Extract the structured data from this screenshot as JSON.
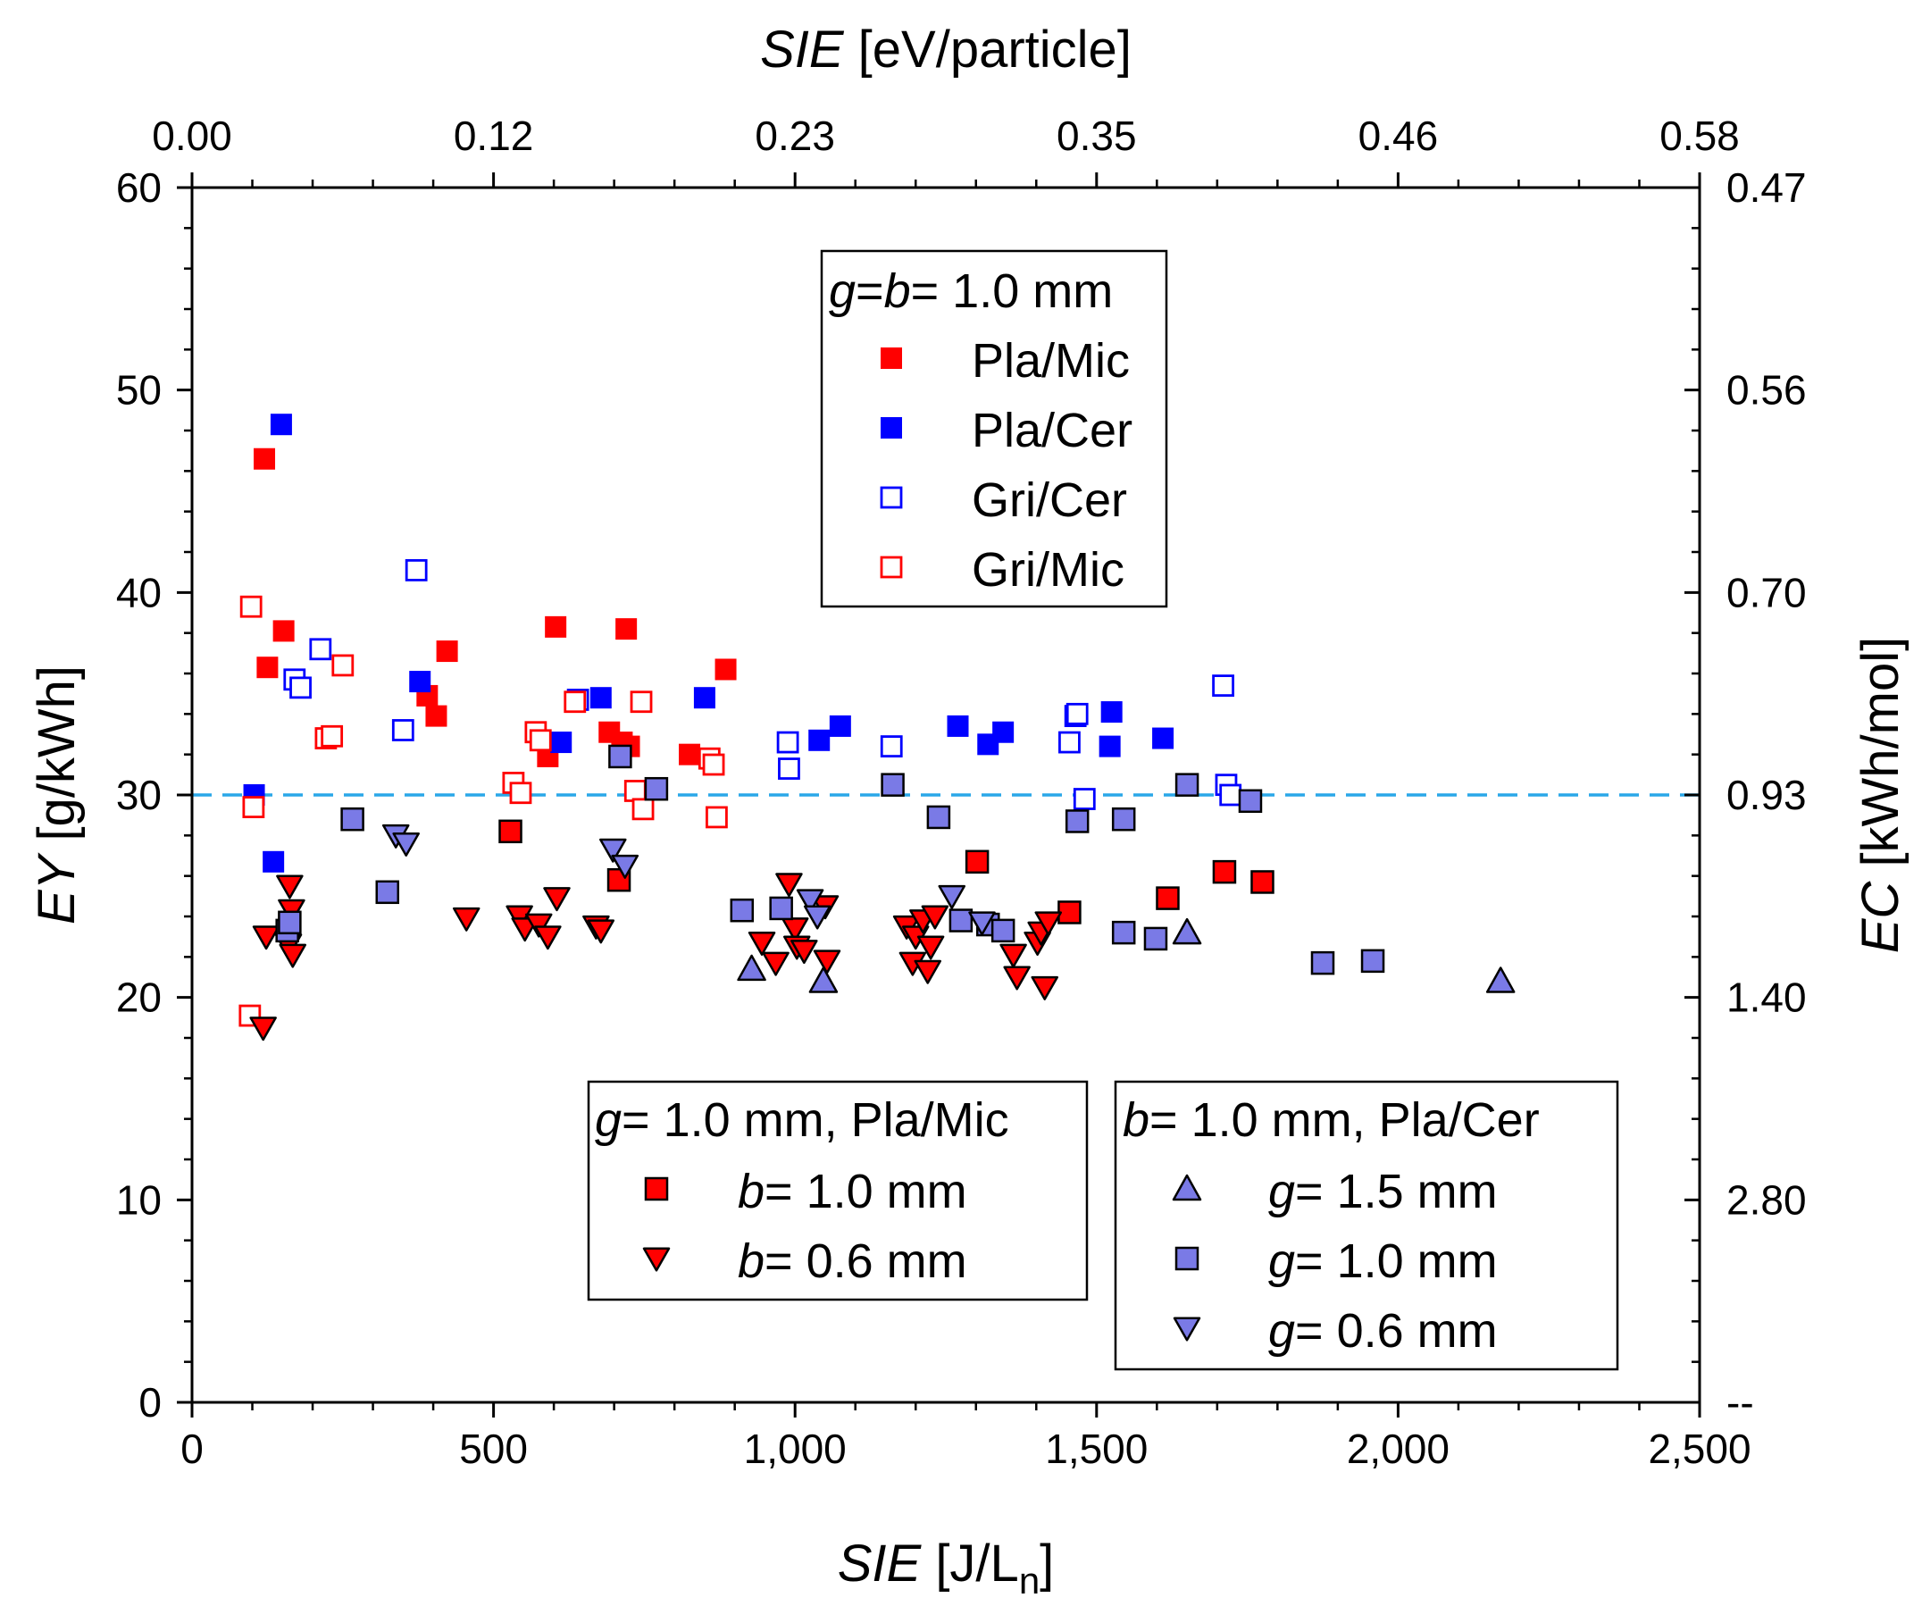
{
  "chart_data": {
    "type": "scatter",
    "title": "",
    "axes": {
      "x_bottom": {
        "label_italic": "SIE",
        "label_rest": " [J/L",
        "label_sub": "n",
        "label_close": "]",
        "range": [
          0,
          2500
        ],
        "ticks": [
          "0",
          "500",
          "1,000",
          "1,500",
          "2,000",
          "2,500"
        ],
        "tick_values": [
          0,
          500,
          1000,
          1500,
          2000,
          2500
        ]
      },
      "x_top": {
        "label_italic": "SIE",
        "label_rest": " [eV/particle]",
        "ticks": [
          "0.00",
          "0.12",
          "0.23",
          "0.35",
          "0.46",
          "0.58"
        ],
        "tick_values": [
          0,
          500,
          1000,
          1500,
          2000,
          2500
        ]
      },
      "y_left": {
        "label_italic": "EY",
        "label_rest": " [g/kWh]",
        "range": [
          0,
          60
        ],
        "ticks": [
          "0",
          "10",
          "20",
          "30",
          "40",
          "50",
          "60"
        ],
        "tick_values": [
          0,
          10,
          20,
          30,
          40,
          50,
          60
        ]
      },
      "y_right": {
        "label_italic": "EC",
        "label_rest": " [kWh/mol]",
        "ticks": [
          "--",
          "2.80",
          "1.40",
          "0.93",
          "0.70",
          "0.56",
          "0.47"
        ],
        "tick_values": [
          0,
          10,
          20,
          30,
          40,
          50,
          60
        ]
      }
    },
    "reference_line": {
      "y": 30,
      "style": "dashed",
      "color": "#2aa7e8"
    },
    "colors": {
      "red": "#ff0000",
      "blue": "#0000ff",
      "purple": "#7a7ae6"
    },
    "legends": [
      {
        "id": "legend-geometry",
        "title_parts": [
          [
            "g",
            true
          ],
          [
            "=",
            false
          ],
          [
            "b",
            true
          ],
          [
            "= 1.0 mm",
            false
          ]
        ],
        "entries": [
          {
            "label": "Pla/Mic",
            "series": "pla_mic"
          },
          {
            "label": "Pla/Cer",
            "series": "pla_cer"
          },
          {
            "label": "Gri/Cer",
            "series": "gri_cer"
          },
          {
            "label": "Gri/Mic",
            "series": "gri_mic"
          }
        ]
      },
      {
        "id": "legend-gap",
        "title_parts": [
          [
            "g",
            true
          ],
          [
            "= 1.0 mm, Pla/Mic",
            false
          ]
        ],
        "entries": [
          {
            "label_parts": [
              [
                "b",
                true
              ],
              [
                "= 1.0 mm",
                false
              ]
            ],
            "series": "b10_pla_mic"
          },
          {
            "label_parts": [
              [
                "b",
                true
              ],
              [
                "= 0.6 mm",
                false
              ]
            ],
            "series": "b06_pla_mic"
          }
        ]
      },
      {
        "id": "legend-barrier",
        "title_parts": [
          [
            "b",
            true
          ],
          [
            "= 1.0 mm, Pla/Cer",
            false
          ]
        ],
        "entries": [
          {
            "label_parts": [
              [
                "g",
                true
              ],
              [
                "= 1.5 mm",
                false
              ]
            ],
            "series": "g15_pla_cer"
          },
          {
            "label_parts": [
              [
                "g",
                true
              ],
              [
                "= 1.0 mm",
                false
              ]
            ],
            "series": "g10_pla_cer"
          },
          {
            "label_parts": [
              [
                "g",
                true
              ],
              [
                "= 0.6 mm",
                false
              ]
            ],
            "series": "g06_pla_cer"
          }
        ]
      }
    ],
    "series": [
      {
        "id": "pla_mic",
        "name": "Pla/Mic",
        "marker": "square",
        "fill": "#ff0000",
        "stroke": "none",
        "points": [
          [
            120,
            46.6
          ],
          [
            125,
            36.3
          ],
          [
            152,
            38.1
          ],
          [
            390,
            34.9
          ],
          [
            405,
            33.9
          ],
          [
            423,
            37.1
          ],
          [
            590,
            31.9
          ],
          [
            603,
            38.3
          ],
          [
            692,
            33.1
          ],
          [
            713,
            32.6
          ],
          [
            720,
            38.2
          ],
          [
            725,
            32.4
          ],
          [
            825,
            32.0
          ],
          [
            885,
            36.2
          ]
        ]
      },
      {
        "id": "pla_cer",
        "name": "Pla/Cer",
        "marker": "square",
        "fill": "#0000ff",
        "stroke": "none",
        "points": [
          [
            148,
            48.3
          ],
          [
            103,
            30.0
          ],
          [
            135,
            26.7
          ],
          [
            378,
            35.6
          ],
          [
            612,
            32.6
          ],
          [
            678,
            34.8
          ],
          [
            1040,
            32.7
          ],
          [
            1075,
            33.4
          ],
          [
            850,
            34.8
          ],
          [
            1270,
            33.4
          ],
          [
            1320,
            32.5
          ],
          [
            1345,
            33.1
          ],
          [
            1525,
            34.1
          ],
          [
            1522,
            32.4
          ],
          [
            1610,
            32.8
          ]
        ]
      },
      {
        "id": "gri_cer",
        "name": "Gri/Cer",
        "marker": "square-open",
        "fill": "none",
        "stroke": "#0000ff",
        "points": [
          [
            372,
            41.1
          ],
          [
            213,
            37.2
          ],
          [
            170,
            35.7
          ],
          [
            180,
            35.3
          ],
          [
            350,
            33.2
          ],
          [
            640,
            34.7
          ],
          [
            988,
            32.6
          ],
          [
            990,
            31.3
          ],
          [
            1160,
            32.4
          ],
          [
            1455,
            32.6
          ],
          [
            1465,
            33.9
          ],
          [
            1468,
            34.0
          ],
          [
            1480,
            29.8
          ],
          [
            1710,
            35.4
          ],
          [
            1715,
            30.5
          ],
          [
            1722,
            30.0
          ]
        ]
      },
      {
        "id": "gri_mic",
        "name": "Gri/Mic",
        "marker": "square-open",
        "fill": "none",
        "stroke": "#ff0000",
        "points": [
          [
            98,
            39.3
          ],
          [
            102,
            29.4
          ],
          [
            96,
            19.1
          ],
          [
            250,
            36.4
          ],
          [
            222,
            32.8
          ],
          [
            232,
            32.9
          ],
          [
            533,
            30.6
          ],
          [
            545,
            30.1
          ],
          [
            570,
            33.1
          ],
          [
            578,
            32.7
          ],
          [
            635,
            34.6
          ],
          [
            745,
            34.6
          ],
          [
            735,
            30.2
          ],
          [
            748,
            29.3
          ],
          [
            858,
            31.8
          ],
          [
            865,
            31.5
          ],
          [
            870,
            28.9
          ]
        ]
      },
      {
        "id": "b10_pla_mic",
        "name": "b= 1.0 mm",
        "marker": "square",
        "fill": "#ff0000",
        "stroke": "#000000",
        "points": [
          [
            528,
            28.2
          ],
          [
            708,
            25.8
          ],
          [
            1302,
            26.7
          ],
          [
            1455,
            24.2
          ],
          [
            1618,
            24.9
          ],
          [
            1712,
            26.2
          ],
          [
            1775,
            25.7
          ]
        ]
      },
      {
        "id": "b06_pla_mic",
        "name": "b= 0.6 mm",
        "marker": "triangle-down",
        "fill": "#ff0000",
        "stroke": "#000000",
        "points": [
          [
            118,
            18.5
          ],
          [
            123,
            23.0
          ],
          [
            162,
            25.5
          ],
          [
            165,
            24.3
          ],
          [
            160,
            22.6
          ],
          [
            167,
            22.1
          ],
          [
            455,
            23.9
          ],
          [
            543,
            24.0
          ],
          [
            552,
            23.4
          ],
          [
            575,
            23.6
          ],
          [
            590,
            23.0
          ],
          [
            605,
            24.9
          ],
          [
            670,
            23.5
          ],
          [
            678,
            23.3
          ],
          [
            990,
            25.6
          ],
          [
            1000,
            23.4
          ],
          [
            1003,
            22.5
          ],
          [
            1015,
            22.3
          ],
          [
            1050,
            24.5
          ],
          [
            1053,
            21.8
          ],
          [
            945,
            22.7
          ],
          [
            968,
            21.7
          ],
          [
            1185,
            23.5
          ],
          [
            1195,
            21.7
          ],
          [
            1200,
            23.0
          ],
          [
            1212,
            23.8
          ],
          [
            1220,
            21.3
          ],
          [
            1225,
            22.5
          ],
          [
            1232,
            24.0
          ],
          [
            1362,
            22.1
          ],
          [
            1368,
            21.0
          ],
          [
            1402,
            22.7
          ],
          [
            1408,
            23.2
          ],
          [
            1414,
            20.5
          ],
          [
            1420,
            23.7
          ]
        ]
      },
      {
        "id": "g15_pla_cer",
        "name": "g= 1.5 mm",
        "marker": "triangle-up",
        "fill": "#7a7ae6",
        "stroke": "#000000",
        "points": [
          [
            928,
            21.4
          ],
          [
            1047,
            20.8
          ],
          [
            1650,
            23.2
          ],
          [
            2170,
            20.8
          ]
        ]
      },
      {
        "id": "g10_pla_cer",
        "name": "g= 1.0 mm",
        "marker": "square",
        "fill": "#7a7ae6",
        "stroke": "#000000",
        "points": [
          [
            158,
            23.3
          ],
          [
            162,
            23.7
          ],
          [
            266,
            28.8
          ],
          [
            324,
            25.2
          ],
          [
            710,
            31.9
          ],
          [
            770,
            30.3
          ],
          [
            912,
            24.3
          ],
          [
            977,
            24.4
          ],
          [
            1162,
            30.5
          ],
          [
            1238,
            28.9
          ],
          [
            1275,
            23.8
          ],
          [
            1320,
            23.6
          ],
          [
            1345,
            23.3
          ],
          [
            1468,
            28.7
          ],
          [
            1545,
            28.8
          ],
          [
            1545,
            23.2
          ],
          [
            1598,
            22.9
          ],
          [
            1650,
            30.5
          ],
          [
            1755,
            29.7
          ],
          [
            1875,
            21.7
          ],
          [
            1958,
            21.8
          ]
        ]
      },
      {
        "id": "g06_pla_cer",
        "name": "g= 0.6 mm",
        "marker": "triangle-down",
        "fill": "#7a7ae6",
        "stroke": "#000000",
        "points": [
          [
            338,
            28.0
          ],
          [
            355,
            27.6
          ],
          [
            698,
            27.3
          ],
          [
            718,
            26.5
          ],
          [
            1025,
            24.8
          ],
          [
            1037,
            24.0
          ],
          [
            1260,
            25.0
          ],
          [
            1310,
            23.7
          ]
        ]
      }
    ]
  }
}
